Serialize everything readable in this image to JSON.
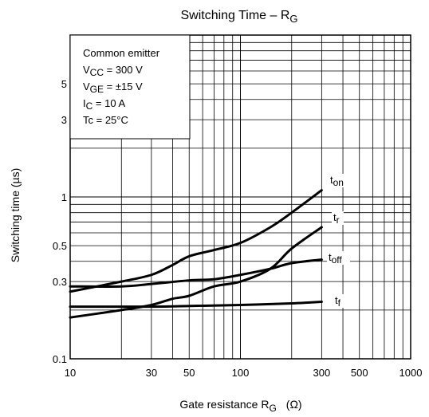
{
  "chart_data": {
    "type": "line",
    "title": {
      "main": "Switching Time – R",
      "sub": "G"
    },
    "xlabel": {
      "main": "Gate resistance   R",
      "sub": "G",
      "unit": "(Ω)"
    },
    "ylabel": "Switching time   (µs)",
    "x_scale": "log",
    "y_scale": "log",
    "xlim": [
      10,
      1000
    ],
    "ylim": [
      0.1,
      10
    ],
    "x_ticks": [
      {
        "value": 10,
        "label": "10"
      },
      {
        "value": 30,
        "label": "30"
      },
      {
        "value": 50,
        "label": "50"
      },
      {
        "value": 100,
        "label": "100"
      },
      {
        "value": 300,
        "label": "300"
      },
      {
        "value": 500,
        "label": "500"
      },
      {
        "value": 1000,
        "label": "1000"
      }
    ],
    "y_ticks": [
      {
        "value": 0.1,
        "label": "0.1"
      },
      {
        "value": 0.3,
        "label": "0.3"
      },
      {
        "value": 0.5,
        "label": "0.5"
      },
      {
        "value": 1,
        "label": "1"
      },
      {
        "value": 3,
        "label": "3"
      },
      {
        "value": 5,
        "label": "5"
      }
    ],
    "grid": true,
    "conditions": [
      {
        "text": "Common emitter"
      },
      {
        "main": "V",
        "sub": "CC",
        "rest": " = 300 V"
      },
      {
        "main": "V",
        "sub": "GE",
        "rest": " = ±15 V"
      },
      {
        "main": "I",
        "sub": "C",
        "rest": " = 10 A"
      },
      {
        "text": "Tc = 25°C"
      }
    ],
    "series": [
      {
        "name": "t",
        "sub": "on",
        "x": [
          10,
          20,
          30,
          40,
          50,
          70,
          100,
          150,
          200,
          300
        ],
        "y": [
          0.26,
          0.3,
          0.33,
          0.38,
          0.43,
          0.47,
          0.52,
          0.65,
          0.8,
          1.1
        ]
      },
      {
        "name": "t",
        "sub": "r",
        "x": [
          10,
          20,
          30,
          40,
          50,
          70,
          100,
          150,
          200,
          300
        ],
        "y": [
          0.18,
          0.2,
          0.215,
          0.235,
          0.245,
          0.28,
          0.3,
          0.36,
          0.48,
          0.65
        ]
      },
      {
        "name": "t",
        "sub": "off",
        "x": [
          10,
          20,
          30,
          50,
          70,
          100,
          150,
          200,
          300
        ],
        "y": [
          0.28,
          0.28,
          0.29,
          0.305,
          0.31,
          0.33,
          0.36,
          0.39,
          0.41
        ]
      },
      {
        "name": "t",
        "sub": "f",
        "x": [
          10,
          30,
          50,
          100,
          200,
          300
        ],
        "y": [
          0.21,
          0.21,
          0.212,
          0.215,
          0.22,
          0.225
        ]
      }
    ]
  }
}
